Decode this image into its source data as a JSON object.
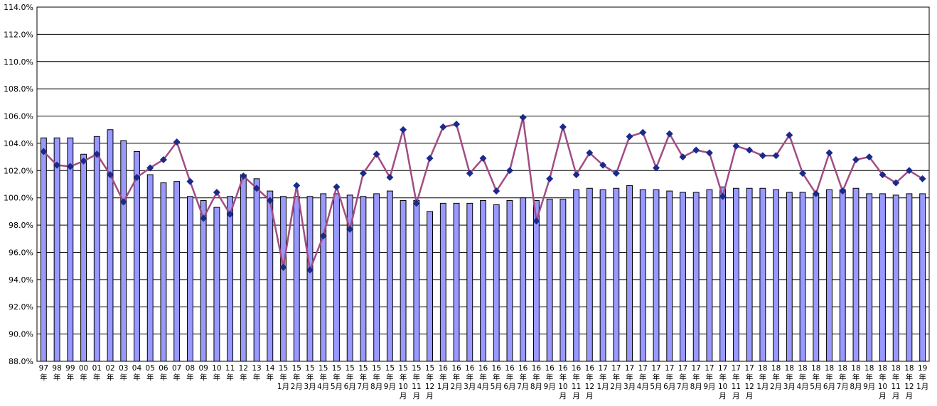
{
  "chart_data": {
    "type": "bar",
    "title": "",
    "xlabel": "",
    "ylabel": "",
    "ylim": [
      88.0,
      114.0
    ],
    "ytick_step": 2.0,
    "yticks": [
      "88.0%",
      "90.0%",
      "92.0%",
      "94.0%",
      "96.0%",
      "98.0%",
      "100.0%",
      "102.0%",
      "104.0%",
      "106.0%",
      "108.0%",
      "110.0%",
      "112.0%",
      "114.0%"
    ],
    "grid": true,
    "legend": "none",
    "categories": [
      "97年",
      "98年",
      "99年",
      "00年",
      "01年",
      "02年",
      "03年",
      "04年",
      "05年",
      "06年",
      "07年",
      "08年",
      "09年",
      "10年",
      "11年",
      "12年",
      "13年",
      "14年",
      "15年1月",
      "15年2月",
      "15年3月",
      "15年4月",
      "15年5月",
      "15年6月",
      "15年7月",
      "15年8月",
      "15年9月",
      "15年10月",
      "15年11月",
      "15年12月",
      "16年1月",
      "16年2月",
      "16年3月",
      "16年4月",
      "16年5月",
      "16年6月",
      "16年7月",
      "16年8月",
      "16年9月",
      "16年10月",
      "16年11月",
      "16年12月",
      "17年1月",
      "17年2月",
      "17年3月",
      "17年4月",
      "17年5月",
      "17年6月",
      "17年7月",
      "17年8月",
      "17年9月",
      "17年10月",
      "17年11月",
      "17年12月",
      "18年1月",
      "18年2月",
      "18年3月",
      "18年4月",
      "18年5月",
      "18年6月",
      "18年7月",
      "18年8月",
      "18年9月",
      "18年10月",
      "18年11月",
      "18年12月",
      "19年1月"
    ],
    "tick_labels": [
      [
        "97",
        "年"
      ],
      [
        "98",
        "年"
      ],
      [
        "99",
        "年"
      ],
      [
        "00",
        "年"
      ],
      [
        "01",
        "年"
      ],
      [
        "02",
        "年"
      ],
      [
        "03",
        "年"
      ],
      [
        "04",
        "年"
      ],
      [
        "05",
        "年"
      ],
      [
        "06",
        "年"
      ],
      [
        "07",
        "年"
      ],
      [
        "08",
        "年"
      ],
      [
        "09",
        "年"
      ],
      [
        "10",
        "年"
      ],
      [
        "11",
        "年"
      ],
      [
        "12",
        "年"
      ],
      [
        "13",
        "年"
      ],
      [
        "14",
        "年"
      ],
      [
        "15",
        "年",
        "1月"
      ],
      [
        "15",
        "年",
        "2月"
      ],
      [
        "15",
        "年",
        "3月"
      ],
      [
        "15",
        "年",
        "4月"
      ],
      [
        "15",
        "年",
        "5月"
      ],
      [
        "15",
        "年",
        "6月"
      ],
      [
        "15",
        "年",
        "7月"
      ],
      [
        "15",
        "年",
        "8月"
      ],
      [
        "15",
        "年",
        "9月"
      ],
      [
        "15",
        "年",
        "10",
        "月"
      ],
      [
        "15",
        "年",
        "11",
        "月"
      ],
      [
        "15",
        "年",
        "12",
        "月"
      ],
      [
        "16",
        "年",
        "1月"
      ],
      [
        "16",
        "年",
        "2月"
      ],
      [
        "16",
        "年",
        "3月"
      ],
      [
        "16",
        "年",
        "4月"
      ],
      [
        "16",
        "年",
        "5月"
      ],
      [
        "16",
        "年",
        "6月"
      ],
      [
        "16",
        "年",
        "7月"
      ],
      [
        "16",
        "年",
        "8月"
      ],
      [
        "16",
        "年",
        "9月"
      ],
      [
        "16",
        "年",
        "10",
        "月"
      ],
      [
        "16",
        "年",
        "11",
        "月"
      ],
      [
        "16",
        "年",
        "12",
        "月"
      ],
      [
        "17",
        "年",
        "1月"
      ],
      [
        "17",
        "年",
        "2月"
      ],
      [
        "17",
        "年",
        "3月"
      ],
      [
        "17",
        "年",
        "4月"
      ],
      [
        "17",
        "年",
        "5月"
      ],
      [
        "17",
        "年",
        "6月"
      ],
      [
        "17",
        "年",
        "7月"
      ],
      [
        "17",
        "年",
        "8月"
      ],
      [
        "17",
        "年",
        "9月"
      ],
      [
        "17",
        "年",
        "10",
        "月"
      ],
      [
        "17",
        "年",
        "11",
        "月"
      ],
      [
        "17",
        "年",
        "12",
        "月"
      ],
      [
        "18",
        "年",
        "1月"
      ],
      [
        "18",
        "年",
        "2月"
      ],
      [
        "18",
        "年",
        "3月"
      ],
      [
        "18",
        "年",
        "4月"
      ],
      [
        "18",
        "年",
        "5月"
      ],
      [
        "18",
        "年",
        "6月"
      ],
      [
        "18",
        "年",
        "7月"
      ],
      [
        "18",
        "年",
        "8月"
      ],
      [
        "18",
        "年",
        "9月"
      ],
      [
        "18",
        "年",
        "10",
        "月"
      ],
      [
        "18",
        "年",
        "11",
        "月"
      ],
      [
        "18",
        "年",
        "12",
        "月"
      ],
      [
        "19",
        "年",
        "1月"
      ]
    ],
    "series": [
      {
        "type": "bar",
        "color": "#9999ff",
        "values": [
          104.4,
          104.4,
          104.4,
          103.2,
          104.5,
          105.0,
          104.2,
          103.4,
          101.7,
          101.1,
          101.2,
          100.1,
          99.8,
          99.3,
          100.1,
          101.7,
          101.4,
          100.5,
          100.1,
          100.1,
          100.1,
          100.3,
          100.3,
          100.2,
          100.1,
          100.3,
          100.5,
          99.8,
          99.8,
          99.0,
          99.6,
          99.6,
          99.6,
          99.8,
          99.5,
          99.8,
          100.0,
          99.8,
          99.9,
          99.9,
          100.6,
          100.7,
          100.6,
          100.7,
          100.9,
          100.6,
          100.6,
          100.5,
          100.4,
          100.4,
          100.6,
          100.8,
          100.7,
          100.7,
          100.7,
          100.6,
          100.4,
          100.4,
          100.3,
          100.6,
          100.6,
          100.7,
          100.3,
          100.3,
          100.2,
          100.3,
          100.3
        ]
      },
      {
        "type": "line",
        "line_color": "#a24c83",
        "marker_color": "#1a2a8c",
        "values": [
          103.4,
          102.4,
          102.3,
          102.7,
          103.2,
          101.7,
          99.7,
          101.5,
          102.2,
          102.8,
          104.1,
          101.2,
          98.5,
          100.4,
          98.8,
          101.6,
          100.7,
          99.8,
          94.9,
          100.9,
          94.7,
          97.2,
          100.8,
          97.7,
          101.8,
          103.2,
          101.5,
          105.0,
          99.6,
          102.9,
          105.2,
          105.4,
          101.8,
          102.9,
          100.5,
          102.0,
          105.9,
          98.3,
          101.4,
          105.2,
          101.7,
          103.3,
          102.4,
          101.8,
          104.5,
          104.8,
          102.2,
          104.7,
          103.0,
          103.5,
          103.3,
          100.1,
          103.8,
          103.5,
          103.1,
          103.1,
          104.6,
          101.8,
          100.3,
          103.3,
          100.5,
          102.8,
          103.0,
          101.7,
          101.1,
          102.0,
          101.4
        ]
      }
    ]
  }
}
